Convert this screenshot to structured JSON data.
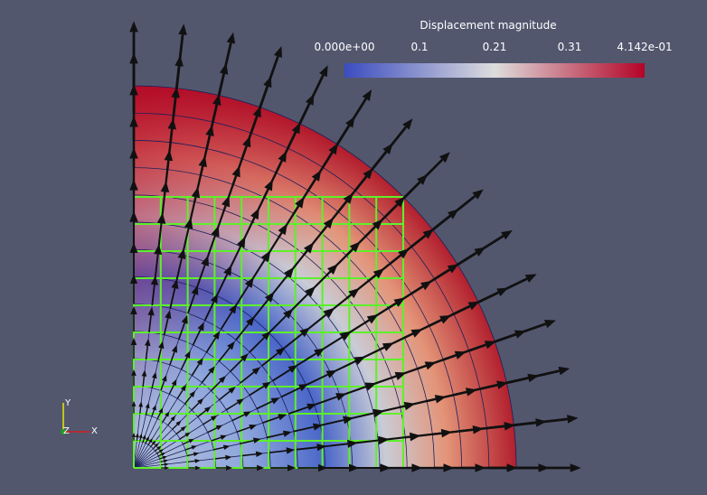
{
  "colorbar": {
    "title": "Displacement magnitude",
    "ticks": [
      "0.000e+00",
      "0.1",
      "0.21",
      "0.31",
      "4.142e-01"
    ]
  },
  "axes": {
    "y": "Y",
    "z": "Z",
    "x": "X"
  }
}
